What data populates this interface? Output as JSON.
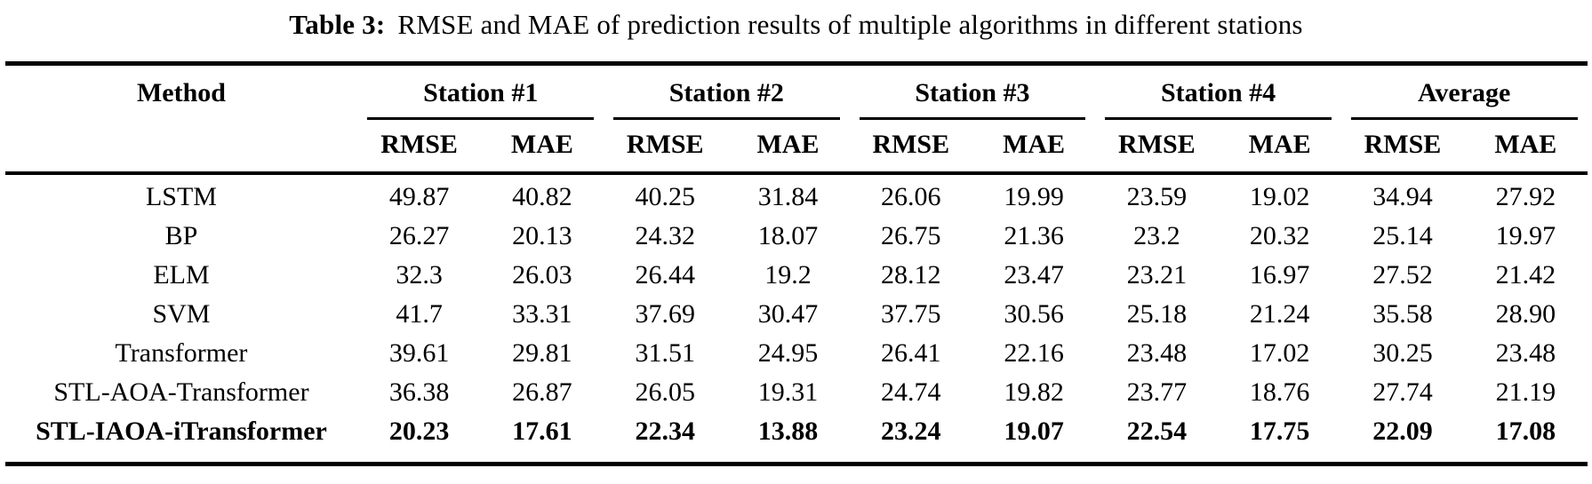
{
  "caption": {
    "label": "Table 3:",
    "text": "RMSE and MAE of prediction results of multiple algorithms in different stations"
  },
  "table": {
    "method_header": "Method",
    "groups": [
      {
        "label": "Station #1",
        "metrics": [
          "RMSE",
          "MAE"
        ]
      },
      {
        "label": "Station #2",
        "metrics": [
          "RMSE",
          "MAE"
        ]
      },
      {
        "label": "Station #3",
        "metrics": [
          "RMSE",
          "MAE"
        ]
      },
      {
        "label": "Station #4",
        "metrics": [
          "RMSE",
          "MAE"
        ]
      },
      {
        "label": "Average",
        "metrics": [
          "RMSE",
          "MAE"
        ]
      }
    ],
    "rows": [
      {
        "method": "LSTM",
        "values": [
          "49.87",
          "40.82",
          "40.25",
          "31.84",
          "26.06",
          "19.99",
          "23.59",
          "19.02",
          "34.94",
          "27.92"
        ]
      },
      {
        "method": "BP",
        "values": [
          "26.27",
          "20.13",
          "24.32",
          "18.07",
          "26.75",
          "21.36",
          "23.2",
          "20.32",
          "25.14",
          "19.97"
        ]
      },
      {
        "method": "ELM",
        "values": [
          "32.3",
          "26.03",
          "26.44",
          "19.2",
          "28.12",
          "23.47",
          "23.21",
          "16.97",
          "27.52",
          "21.42"
        ]
      },
      {
        "method": "SVM",
        "values": [
          "41.7",
          "33.31",
          "37.69",
          "30.47",
          "37.75",
          "30.56",
          "25.18",
          "21.24",
          "35.58",
          "28.90"
        ]
      },
      {
        "method": "Transformer",
        "values": [
          "39.61",
          "29.81",
          "31.51",
          "24.95",
          "26.41",
          "22.16",
          "23.48",
          "17.02",
          "30.25",
          "23.48"
        ]
      },
      {
        "method": "STL-AOA-Transformer",
        "values": [
          "36.38",
          "26.87",
          "26.05",
          "19.31",
          "24.74",
          "19.82",
          "23.77",
          "18.76",
          "27.74",
          "21.19"
        ]
      },
      {
        "method": "STL-IAOA-iTransformer",
        "values": [
          "20.23",
          "17.61",
          "22.34",
          "13.88",
          "23.24",
          "19.07",
          "22.54",
          "17.75",
          "22.09",
          "17.08"
        ]
      }
    ],
    "colors": {
      "text": "#000000",
      "rule": "#000000",
      "background": "#ffffff"
    }
  }
}
